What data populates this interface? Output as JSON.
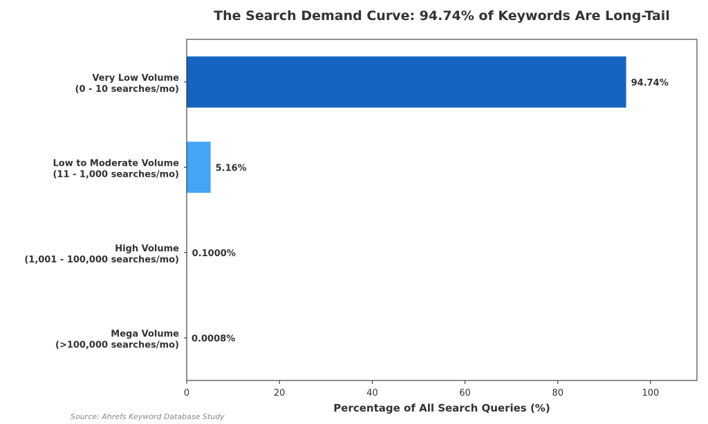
{
  "chart_data": {
    "type": "bar",
    "orientation": "horizontal",
    "title": "The Search Demand Curve: 94.74% of Keywords Are Long-Tail",
    "xlabel": "Percentage of All Search Queries (%)",
    "ylabel": "",
    "xlim": [
      0,
      110
    ],
    "xticks": [
      0,
      20,
      40,
      60,
      80,
      100
    ],
    "grid": false,
    "categories": [
      [
        "Very Low Volume",
        "(0 - 10 searches/mo)"
      ],
      [
        "Low to Moderate Volume",
        "(11 - 1,000 searches/mo)"
      ],
      [
        "High Volume",
        "(1,001 - 100,000 searches/mo)"
      ],
      [
        "Mega Volume",
        "(>100,000 searches/mo)"
      ]
    ],
    "values": [
      94.74,
      5.16,
      0.1,
      0.0008
    ],
    "value_labels": [
      "94.74%",
      "5.16%",
      "0.1000%",
      "0.0008%"
    ],
    "colors": [
      "#1565c0",
      "#42a5f5",
      "#90caf9",
      "#bbdefb"
    ]
  },
  "source": "Source: Ahrefs Keyword Database Study"
}
